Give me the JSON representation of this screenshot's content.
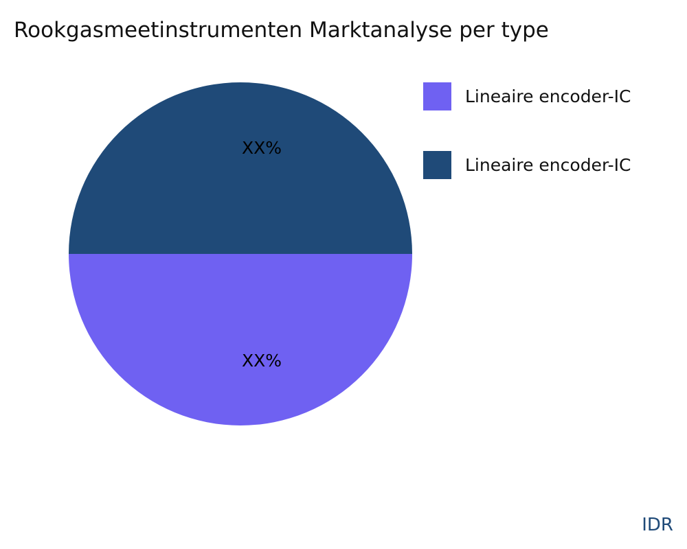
{
  "chart_data": {
    "type": "pie",
    "title": "Rookgasmeetinstrumenten Marktanalyse per type",
    "slices": [
      {
        "name": "Lineaire encoder-IC",
        "value": 50,
        "label": "XX%",
        "color": "#6f61f2"
      },
      {
        "name": "Lineaire encoder-IC",
        "value": 50,
        "label": "XX%",
        "color": "#1f4a78"
      }
    ],
    "legend_position": "right"
  },
  "brand": "IDR"
}
